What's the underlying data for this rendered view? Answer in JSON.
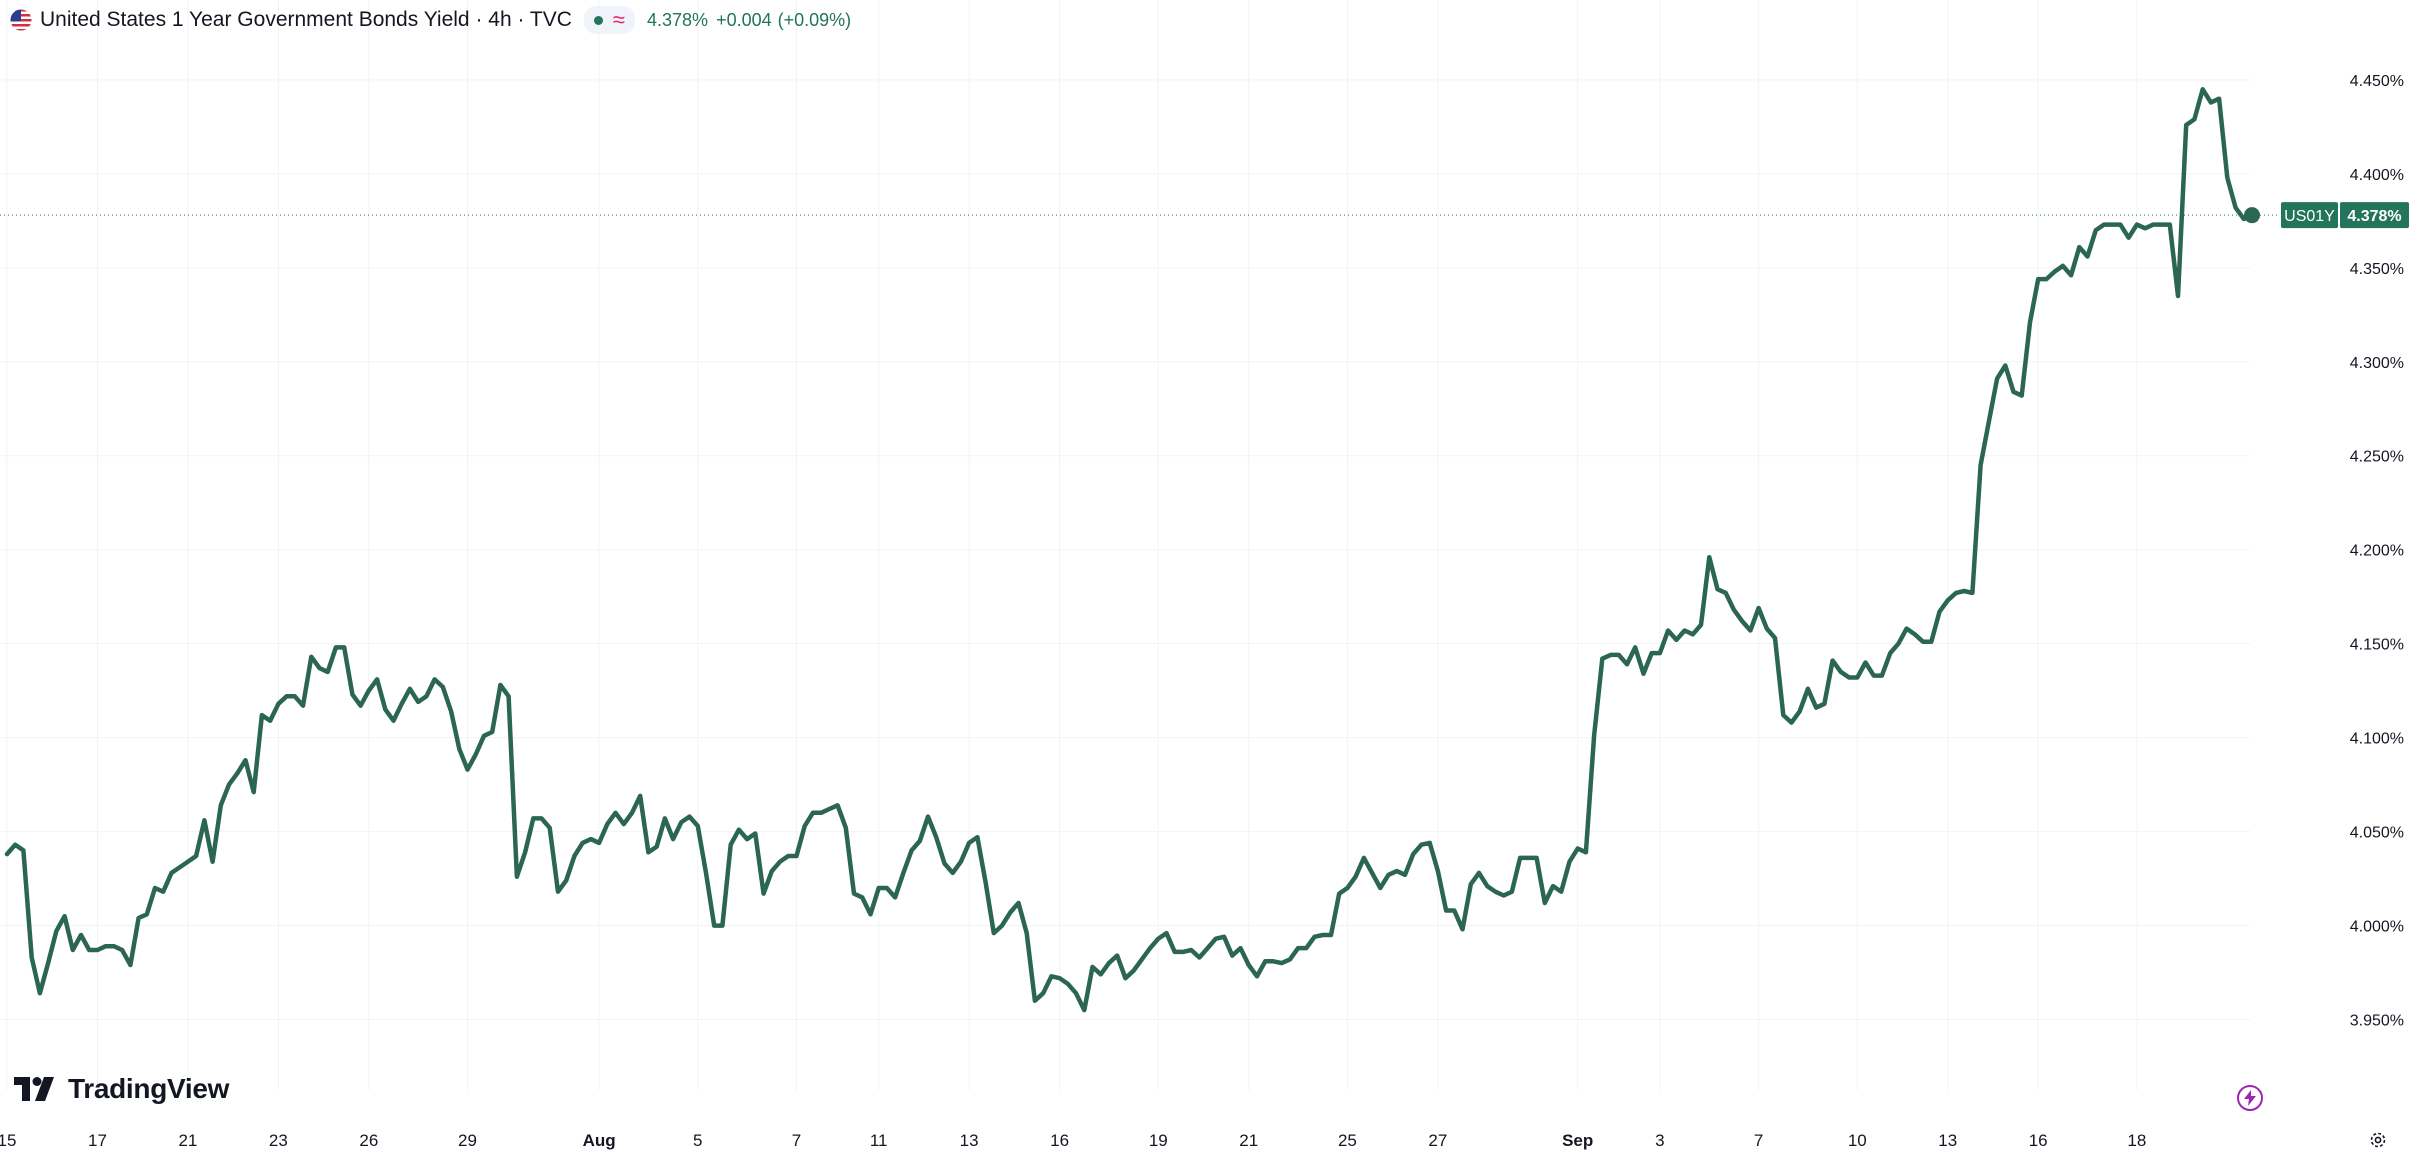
{
  "legend": {
    "title": "United States 1 Year Government Bonds Yield · 4h · TVC",
    "last": "4.378%",
    "change": "+0.004",
    "change_pct": "(+0.09%)",
    "approx_symbol": "≈"
  },
  "colors": {
    "line": "#2b6651",
    "up": "#22745a",
    "approx": "#e91e63",
    "grid": "#f0f3fa",
    "label_bg": "#22745a"
  },
  "price_label": {
    "symbol": "US01Y",
    "value": "4.378%"
  },
  "brand": {
    "name": "TradingView"
  },
  "icons": [
    "us-flag-icon",
    "status-dot-icon",
    "approx-icon",
    "tradingview-logo-icon",
    "lightning-icon",
    "gear-icon"
  ],
  "chart_data": {
    "type": "line",
    "series": [
      {
        "name": "",
        "values": [
          4.038,
          4.043,
          4.04,
          3.983,
          3.964,
          3.98,
          3.997,
          4.005,
          3.987,
          3.995,
          3.987,
          3.987,
          3.989,
          3.989,
          3.987,
          3.979,
          4.004,
          4.006,
          4.02,
          4.018,
          4.028,
          4.031,
          4.034,
          4.037,
          4.056,
          4.034,
          4.064,
          4.075,
          4.081,
          4.088,
          4.071,
          4.112,
          4.109,
          4.118,
          4.122,
          4.122,
          4.117,
          4.143,
          4.137,
          4.135,
          4.148,
          4.148,
          4.123,
          4.117,
          4.125,
          4.131,
          4.115,
          4.109,
          4.118,
          4.126,
          4.119,
          4.122,
          4.131,
          4.127,
          4.114,
          4.094,
          4.083,
          4.091,
          4.101,
          4.103,
          4.128,
          4.122,
          4.026,
          4.039,
          4.057,
          4.057,
          4.052,
          4.018,
          4.024,
          4.037,
          4.044,
          4.046,
          4.044,
          4.054,
          4.06,
          4.054,
          4.06,
          4.069,
          4.039,
          4.042,
          4.057,
          4.046,
          4.055,
          4.058,
          4.053,
          4.028,
          4.0,
          4.0,
          4.043,
          4.051,
          4.046,
          4.049,
          4.017,
          4.029,
          4.034,
          4.037,
          4.037,
          4.053,
          4.06,
          4.06,
          4.062,
          4.064,
          4.052,
          4.017,
          4.015,
          4.006,
          4.02,
          4.02,
          4.015,
          4.028,
          4.04,
          4.045,
          4.058,
          4.047,
          4.033,
          4.028,
          4.034,
          4.044,
          4.047,
          4.023,
          3.996,
          4.0,
          4.007,
          4.012,
          3.996,
          3.96,
          3.964,
          3.973,
          3.972,
          3.969,
          3.964,
          3.955,
          3.978,
          3.974,
          3.98,
          3.984,
          3.972,
          3.976,
          3.982,
          3.988,
          3.993,
          3.996,
          3.986,
          3.986,
          3.987,
          3.983,
          3.988,
          3.993,
          3.994,
          3.984,
          3.988,
          3.979,
          3.973,
          3.981,
          3.981,
          3.98,
          3.982,
          3.988,
          3.988,
          3.994,
          3.995,
          3.995,
          4.017,
          4.02,
          4.026,
          4.036,
          4.028,
          4.02,
          4.027,
          4.029,
          4.027,
          4.038,
          4.043,
          4.044,
          4.029,
          4.008,
          4.008,
          3.998,
          4.022,
          4.028,
          4.021,
          4.018,
          4.016,
          4.018,
          4.036,
          4.036,
          4.036,
          4.012,
          4.021,
          4.018,
          4.034,
          4.041,
          4.039,
          4.101,
          4.142,
          4.144,
          4.144,
          4.139,
          4.148,
          4.134,
          4.145,
          4.145,
          4.157,
          4.152,
          4.157,
          4.155,
          4.16,
          4.196,
          4.179,
          4.177,
          4.168,
          4.162,
          4.157,
          4.169,
          4.158,
          4.153,
          4.112,
          4.108,
          4.114,
          4.126,
          4.116,
          4.118,
          4.141,
          4.135,
          4.132,
          4.132,
          4.14,
          4.133,
          4.133,
          4.145,
          4.15,
          4.158,
          4.155,
          4.151,
          4.151,
          4.167,
          4.173,
          4.177,
          4.178,
          4.177,
          4.245,
          4.268,
          4.291,
          4.298,
          4.284,
          4.282,
          4.321,
          4.344,
          4.344,
          4.348,
          4.351,
          4.346,
          4.361,
          4.356,
          4.37,
          4.373,
          4.373,
          4.373,
          4.366,
          4.373,
          4.371,
          4.373,
          4.373,
          4.373,
          4.335,
          4.426,
          4.429,
          4.445,
          4.438,
          4.44,
          4.398,
          4.382,
          4.376,
          4.378
        ]
      }
    ],
    "x_ticks": [
      {
        "label": "15",
        "index": 0
      },
      {
        "label": "17",
        "index": 11
      },
      {
        "label": "21",
        "index": 22
      },
      {
        "label": "23",
        "index": 33
      },
      {
        "label": "26",
        "index": 44
      },
      {
        "label": "29",
        "index": 56
      },
      {
        "label": "Aug",
        "index": 72,
        "bold": true
      },
      {
        "label": "5",
        "index": 84
      },
      {
        "label": "7",
        "index": 96
      },
      {
        "label": "11",
        "index": 106
      },
      {
        "label": "13",
        "index": 117
      },
      {
        "label": "16",
        "index": 128
      },
      {
        "label": "19",
        "index": 140
      },
      {
        "label": "21",
        "index": 151
      },
      {
        "label": "25",
        "index": 163
      },
      {
        "label": "27",
        "index": 174
      },
      {
        "label": "Sep",
        "index": 191,
        "bold": true
      },
      {
        "label": "3",
        "index": 201
      },
      {
        "label": "7",
        "index": 213
      },
      {
        "label": "10",
        "index": 225
      },
      {
        "label": "13",
        "index": 236
      },
      {
        "label": "16",
        "index": 247
      },
      {
        "label": "18",
        "index": 259
      }
    ],
    "y_ticks": [
      3.95,
      4.0,
      4.05,
      4.1,
      4.15,
      4.2,
      4.25,
      4.3,
      4.35,
      4.4,
      4.45
    ],
    "y_tick_labels": [
      "3.950%",
      "4.000%",
      "4.050%",
      "4.100%",
      "4.150%",
      "4.200%",
      "4.250%",
      "4.300%",
      "4.350%",
      "4.400%",
      "4.450%"
    ],
    "ylim": [
      3.9125,
      4.4925
    ],
    "last_value": 4.378,
    "grid": true
  }
}
